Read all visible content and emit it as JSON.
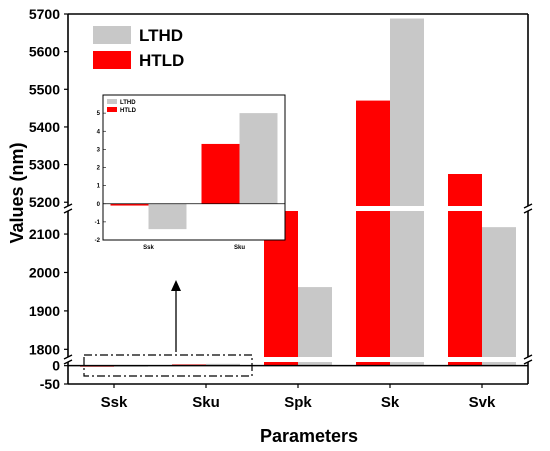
{
  "chart_data": {
    "type": "bar",
    "xlabel": "Parameters",
    "ylabel": "Values (nm)",
    "categories": [
      "Ssk",
      "Sku",
      "Spk",
      "Sk",
      "Svk"
    ],
    "series": [
      {
        "name": "HTLD",
        "color": "#ff0000",
        "values": [
          -0.1,
          3.3,
          2165,
          5470,
          5275
        ]
      },
      {
        "name": "LTHD",
        "color": "#c8c8c8",
        "values": [
          -1.4,
          5.0,
          1962,
          5688,
          2118
        ]
      }
    ],
    "y_axis_segments": [
      {
        "range": [
          -50,
          10
        ],
        "ticks": [
          "-50",
          "0"
        ]
      },
      {
        "range": [
          1780,
          2160
        ],
        "ticks": [
          "1800",
          "1900",
          "2000",
          "2100"
        ]
      },
      {
        "range": [
          5190,
          5700
        ],
        "ticks": [
          "5200",
          "5300",
          "5400",
          "5500",
          "5600",
          "5700"
        ]
      }
    ],
    "legend": {
      "position": "top-left"
    },
    "inset": {
      "categories": [
        "Ssk",
        "Sku"
      ],
      "ylim": [
        -2,
        6
      ],
      "ticks": [
        "-2",
        "-1",
        "0",
        "1",
        "2",
        "3",
        "4",
        "5"
      ],
      "legend": [
        "LTHD",
        "HTLD"
      ]
    }
  }
}
